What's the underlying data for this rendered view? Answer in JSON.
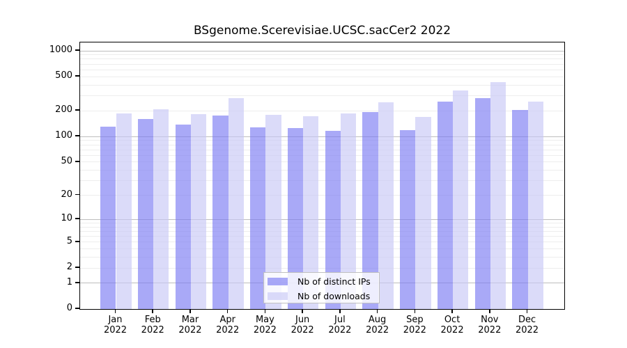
{
  "title": "BSgenome.Scerevisiae.UCSC.sacCer2 2022",
  "colors": {
    "ips_bar": "rgba(123,123,242,0.65)",
    "downloads_bar": "rgba(200,200,246,0.65)",
    "grid_major": "#bdbdbd",
    "grid_minor": "#ededed",
    "axis": "#000000",
    "legend_bg": "rgba(255,255,255,0.8)",
    "legend_border": "#c0c0c0"
  },
  "chart_data": {
    "type": "bar",
    "title": "BSgenome.Scerevisiae.UCSC.sacCer2 2022",
    "categories": [
      "Jan 2022",
      "Feb 2022",
      "Mar 2022",
      "Apr 2022",
      "May 2022",
      "Jun 2022",
      "Jul 2022",
      "Aug 2022",
      "Sep 2022",
      "Oct 2022",
      "Nov 2022",
      "Dec 2022"
    ],
    "series": [
      {
        "name": "Nb of distinct IPs",
        "values": [
          130,
          160,
          139,
          175,
          129,
          125,
          117,
          194,
          118,
          258,
          282,
          205
        ]
      },
      {
        "name": "Nb of downloads",
        "values": [
          187,
          210,
          184,
          282,
          179,
          174,
          188,
          253,
          170,
          344,
          435,
          258
        ]
      }
    ],
    "yscale": "log1p",
    "yticks": [
      0,
      1,
      2,
      5,
      10,
      20,
      50,
      100,
      200,
      500,
      1000
    ],
    "ylim": [
      0,
      1280
    ],
    "grid": true,
    "legend_position": "bottom-center-inside"
  }
}
